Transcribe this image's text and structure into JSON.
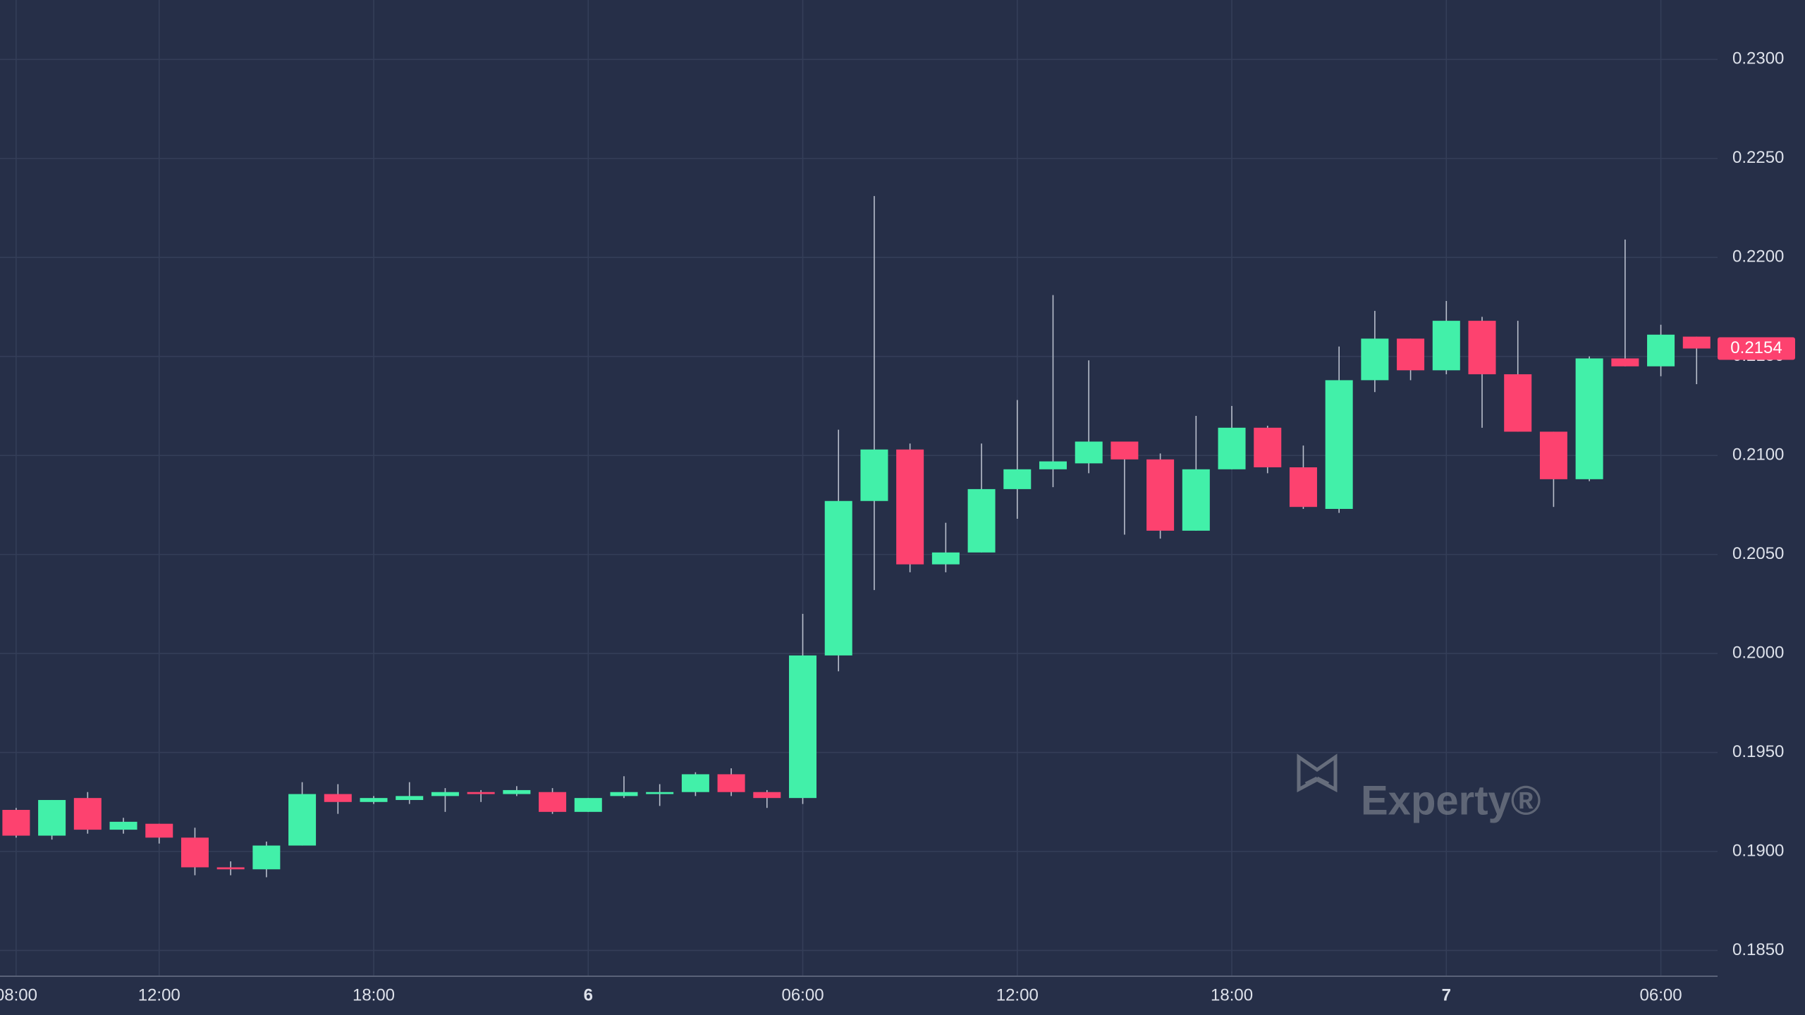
{
  "chart_data": {
    "type": "candlestick",
    "categories": [
      "08:00",
      null,
      null,
      null,
      "12:00",
      null,
      null,
      null,
      null,
      null,
      "18:00",
      null,
      null,
      null,
      null,
      null,
      "6",
      null,
      null,
      null,
      null,
      null,
      "06:00",
      null,
      null,
      null,
      null,
      null,
      "12:00",
      null,
      null,
      null,
      null,
      null,
      "18:00",
      null,
      null,
      null,
      null,
      null,
      "7",
      null,
      null,
      null,
      null,
      null,
      "06:00",
      null
    ],
    "open": [
      0.1921,
      0.1908,
      0.1927,
      0.1911,
      0.1914,
      0.1907,
      0.1892,
      0.1891,
      0.1903,
      0.1929,
      0.1925,
      0.1926,
      0.1928,
      0.193,
      0.1929,
      0.193,
      0.192,
      0.1928,
      0.1929,
      0.193,
      0.1939,
      0.193,
      0.1927,
      0.1999,
      0.2077,
      0.2103,
      0.2045,
      0.2051,
      0.2083,
      0.2093,
      0.2096,
      0.2107,
      0.2098,
      0.2062,
      0.2093,
      0.2114,
      0.2094,
      0.2073,
      0.2138,
      0.2159,
      0.2143,
      0.2168,
      0.2141,
      0.2112,
      0.2088,
      0.2149,
      0.2145,
      0.216
    ],
    "high": [
      0.1922,
      0.1926,
      0.193,
      0.1917,
      0.1914,
      0.1912,
      0.1895,
      0.1905,
      0.1935,
      0.1934,
      0.1928,
      0.1935,
      0.1932,
      0.1931,
      0.1933,
      0.1932,
      0.1927,
      0.1938,
      0.1934,
      0.194,
      0.1942,
      0.1931,
      0.202,
      0.2113,
      0.2231,
      0.2106,
      0.2066,
      0.2106,
      0.2128,
      0.2181,
      0.2148,
      0.2107,
      0.2101,
      0.212,
      0.2125,
      0.2115,
      0.2105,
      0.2155,
      0.2173,
      0.2159,
      0.2178,
      0.217,
      0.2168,
      0.2112,
      0.215,
      0.2209,
      0.2166,
      0.216
    ],
    "low": [
      0.1907,
      0.1906,
      0.1909,
      0.1909,
      0.1904,
      0.1888,
      0.1888,
      0.1887,
      0.1903,
      0.1919,
      0.1924,
      0.1924,
      0.192,
      0.1925,
      0.1928,
      0.1919,
      0.192,
      0.1927,
      0.1923,
      0.1928,
      0.1928,
      0.1922,
      0.1924,
      0.1991,
      0.2032,
      0.2041,
      0.2041,
      0.2051,
      0.2068,
      0.2084,
      0.2091,
      0.206,
      0.2058,
      0.2062,
      0.2093,
      0.2091,
      0.2073,
      0.2071,
      0.2132,
      0.2138,
      0.2141,
      0.2114,
      0.2112,
      0.2074,
      0.2087,
      0.2145,
      0.214,
      0.2136
    ],
    "close": [
      0.1908,
      0.1926,
      0.1911,
      0.1915,
      0.1907,
      0.1892,
      0.1891,
      0.1903,
      0.1929,
      0.1925,
      0.1927,
      0.1928,
      0.193,
      0.1929,
      0.1931,
      0.192,
      0.1927,
      0.193,
      0.193,
      0.1939,
      0.193,
      0.1927,
      0.1999,
      0.2077,
      0.2103,
      0.2045,
      0.2051,
      0.2083,
      0.2093,
      0.2097,
      0.2107,
      0.2098,
      0.2062,
      0.2093,
      0.2114,
      0.2094,
      0.2074,
      0.2138,
      0.2159,
      0.2143,
      0.2168,
      0.2141,
      0.2112,
      0.2088,
      0.2149,
      0.2145,
      0.2161,
      0.2154
    ],
    "up_color": "#42f0a9",
    "down_color": "#fd426f",
    "ylim": [
      0.1837,
      0.233
    ],
    "yticks": [
      {
        "value": 0.185,
        "label": "0.1850"
      },
      {
        "value": 0.19,
        "label": "0.1900"
      },
      {
        "value": 0.195,
        "label": "0.1950"
      },
      {
        "value": 0.2,
        "label": "0.2000"
      },
      {
        "value": 0.205,
        "label": "0.2050"
      },
      {
        "value": 0.21,
        "label": "0.2100"
      },
      {
        "value": 0.215,
        "label": "0.2150"
      },
      {
        "value": 0.22,
        "label": "0.2200"
      },
      {
        "value": 0.225,
        "label": "0.2250"
      },
      {
        "value": 0.23,
        "label": "0.2300"
      }
    ],
    "grid": true,
    "last_price": 0.2154,
    "watermark": "Experty®"
  }
}
